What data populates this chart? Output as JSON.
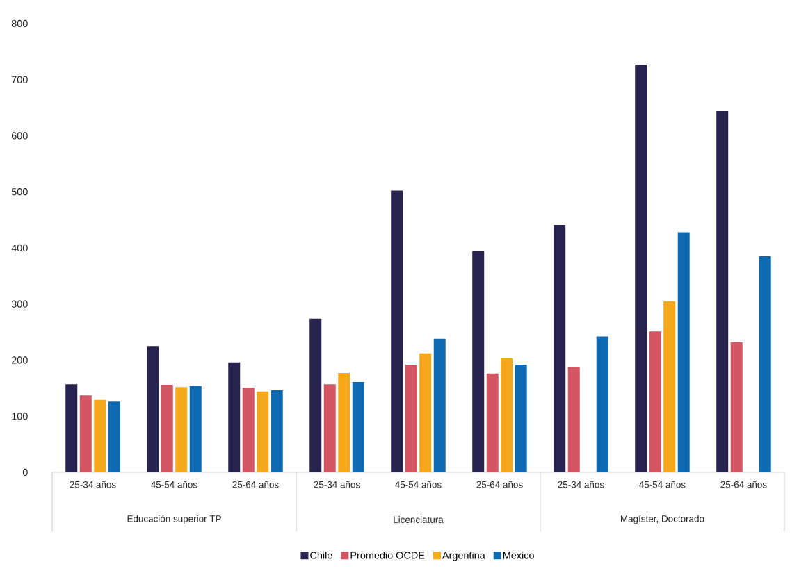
{
  "chart_data": {
    "type": "bar",
    "categories": [
      "25-34 años",
      "45-54 años",
      "25-64 años",
      "25-34 años",
      "45-54 años",
      "25-64 años",
      "25-34 años",
      "45-54 años",
      "25-64 años"
    ],
    "annotations": [
      "Educación superior TP",
      "Licenciatura",
      "Magíster, Doctorado"
    ],
    "series": [
      {
        "name": "Chile",
        "color": "#28224f",
        "values": [
          157,
          225,
          196,
          274,
          502,
          394,
          441,
          727,
          644
        ]
      },
      {
        "name": "Promedio OCDE",
        "color": "#d45563",
        "values": [
          137,
          156,
          151,
          157,
          192,
          176,
          188,
          251,
          232
        ]
      },
      {
        "name": "Argentina",
        "color": "#f5a81c",
        "values": [
          129,
          152,
          144,
          177,
          212,
          203,
          null,
          305,
          null
        ]
      },
      {
        "name": "Mexico",
        "color": "#0f6ab4",
        "values": [
          126,
          154,
          146,
          161,
          238,
          192,
          242,
          428,
          385
        ]
      }
    ],
    "ylim": [
      0,
      800
    ],
    "yticks": [
      0,
      100,
      200,
      300,
      400,
      500,
      600,
      700,
      800
    ],
    "grid": false,
    "legend": "bottom"
  }
}
